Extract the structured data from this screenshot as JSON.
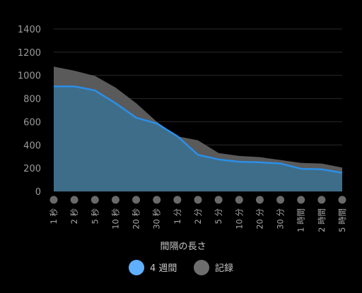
{
  "chart_data": {
    "type": "area",
    "xlabel": "間隔の長さ",
    "ylabel": "",
    "ylim": [
      0,
      1400
    ],
    "yticks": [
      0,
      200,
      400,
      600,
      800,
      1000,
      1200,
      1400
    ],
    "grid": true,
    "legend_position": "bottom",
    "categories": [
      "1 秒",
      "2 秒",
      "5 秒",
      "10 秒",
      "20 秒",
      "30 秒",
      "1 分",
      "2 分",
      "5 分",
      "10 分",
      "20 分",
      "30 分",
      "1 時間",
      "2 時間",
      "5 時間"
    ],
    "series": [
      {
        "name": "記録",
        "color": "#5a5a5a",
        "values": [
          1075,
          1040,
          995,
          895,
          760,
          600,
          475,
          440,
          330,
          305,
          295,
          270,
          245,
          240,
          205
        ]
      },
      {
        "name": "4 週間",
        "color": "#2b8fe8",
        "fill": "#3d6f8c",
        "values": [
          905,
          905,
          870,
          760,
          635,
          585,
          475,
          315,
          275,
          255,
          250,
          240,
          195,
          190,
          160
        ]
      }
    ]
  }
}
